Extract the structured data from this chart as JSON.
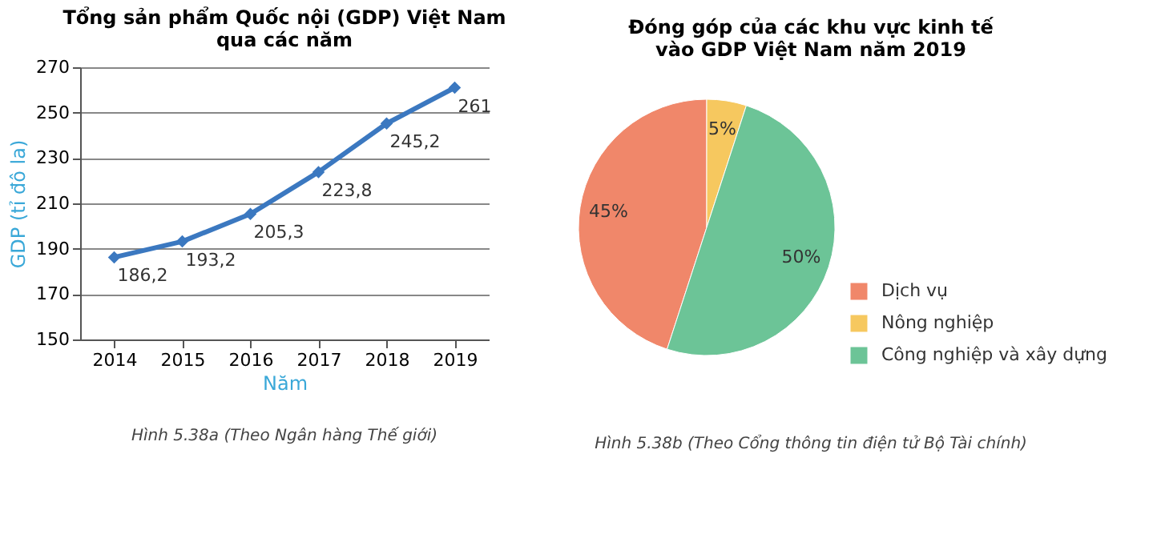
{
  "chart_data": [
    {
      "type": "line",
      "title": "Tổng sản phẩm Quốc nội (GDP) Việt Nam\nqua các năm",
      "xlabel": "Năm",
      "ylabel": "GDP (tỉ đô la)",
      "categories": [
        "2014",
        "2015",
        "2016",
        "2017",
        "2018",
        "2019"
      ],
      "series": [
        {
          "color": "#3b78c0",
          "values": [
            186.2,
            193.2,
            205.3,
            223.8,
            245.2,
            261
          ],
          "value_labels": [
            "186,2",
            "193,2",
            "205,3",
            "223,8",
            "245,2",
            "261"
          ]
        }
      ],
      "ylim": [
        150,
        270
      ],
      "yticks": [
        150,
        170,
        190,
        210,
        230,
        250,
        270
      ],
      "grid": "y",
      "marker": "diamond",
      "line_style": "solid",
      "annotations": [
        "Hình 5.38a (Theo Ngân hàng Thế giới)"
      ]
    },
    {
      "type": "pie",
      "title": "Đóng góp của các khu vực kinh tế\nvào GDP Việt Nam năm 2019",
      "categories": [
        "Dịch vụ",
        "Nông nghiệp",
        "Công nghiệp và xây dựng"
      ],
      "values": [
        45,
        5,
        50
      ],
      "colors": [
        "#f0876a",
        "#f6c85f",
        "#6cc497"
      ],
      "value_labels": [
        "45%",
        "5%",
        "50%"
      ],
      "legend": "bottom right",
      "annotations": [
        "Hình 5.38b (Theo Cổng thông tin điện tử Bộ Tài chính)"
      ]
    }
  ]
}
